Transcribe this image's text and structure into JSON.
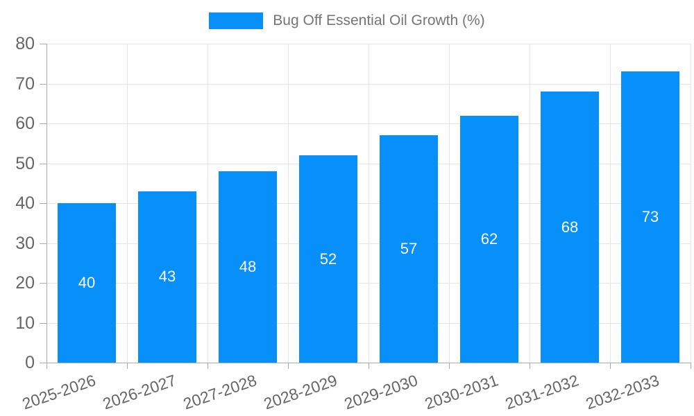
{
  "chart_data": {
    "type": "bar",
    "title": "",
    "legend": {
      "label": "Bug Off Essential Oil Growth (%)",
      "position": "top"
    },
    "categories": [
      "2025-2026",
      "2026-2027",
      "2027-2028",
      "2028-2029",
      "2029-2030",
      "2030-2031",
      "2031-2032",
      "2032-2033"
    ],
    "values": [
      40,
      43,
      48,
      52,
      57,
      62,
      68,
      73
    ],
    "xlabel": "",
    "ylabel": "",
    "ylim": [
      0,
      80
    ],
    "yticks": [
      0,
      10,
      20,
      30,
      40,
      50,
      60,
      70,
      80
    ],
    "grid": true,
    "legend_position": "top-center",
    "colors": {
      "bar": "#0890fa",
      "grid": "#e6e6e6",
      "axis": "#ababab",
      "axis_text": "#666666",
      "legend_text": "#757575",
      "value_label": "#ffffff",
      "background": "#ffffff"
    }
  }
}
